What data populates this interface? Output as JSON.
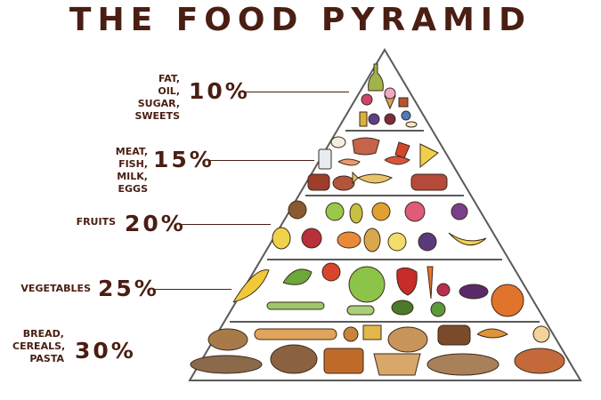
{
  "title": "THE FOOD PYRAMID",
  "tiers": [
    {
      "label_lines": [
        "FAT, OIL,",
        "SUGAR,",
        "SWEETS"
      ],
      "percent": "10%",
      "share": 10
    },
    {
      "label_lines": [
        "MEAT, FISH,",
        "MILK, EGGS"
      ],
      "percent": "15%",
      "share": 15
    },
    {
      "label_lines": [
        "FRUITS"
      ],
      "percent": "20%",
      "share": 20
    },
    {
      "label_lines": [
        "VEGETABLES"
      ],
      "percent": "25%",
      "share": 25
    },
    {
      "label_lines": [
        "BREAD,",
        "CEREALS,",
        "PASTA"
      ],
      "percent": "30%",
      "share": 30
    }
  ],
  "colors": {
    "ink": "#4a1e12",
    "outline": "#5a5a5a"
  }
}
